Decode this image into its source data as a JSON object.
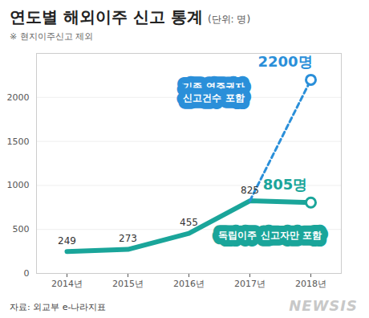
{
  "chart_data": {
    "type": "line",
    "title": "연도별 해외이주 신고 통계",
    "y_label": "(단위: 명)",
    "subtitle": "※ 현지이주신고 제외",
    "source": "자료: 외교부 e-나라지표",
    "watermark": "NEWSIS",
    "categories": [
      "2014년",
      "2015년",
      "2016년",
      "2017년",
      "2018년"
    ],
    "series": [
      {
        "name": "독립이주 신고자만 포함",
        "color": "#1aa59a",
        "line_style": "solid",
        "marker": "circle",
        "values": [
          249,
          273,
          455,
          825,
          805
        ],
        "value_labels": [
          "249",
          "273",
          "455",
          "825",
          "805명"
        ]
      },
      {
        "name": "기존 영주권자\n신고건수 포함",
        "color": "#2a8fd9",
        "line_style": "dashed",
        "marker": "circle",
        "values": [
          null,
          null,
          null,
          825,
          2200
        ],
        "value_labels": [
          null,
          null,
          null,
          null,
          "2200명"
        ]
      }
    ],
    "ylim": [
      0,
      2500
    ],
    "yticks": [
      0,
      500,
      1000,
      1500,
      2000
    ],
    "grid": true,
    "data_labels": true
  }
}
